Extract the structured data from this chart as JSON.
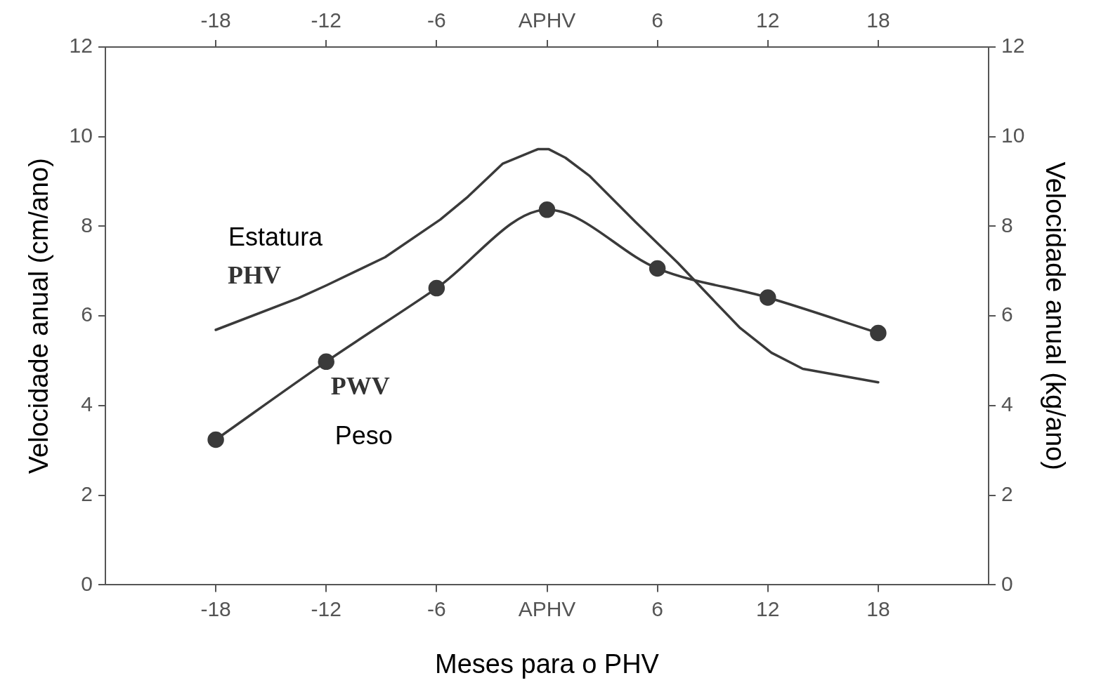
{
  "chart_data": {
    "type": "line",
    "xlabel": "Meses para o PHV",
    "ylabel": "Velocidade anual (cm/ano)",
    "y2label": "Velocidade anual (kg/ano)",
    "xlim": [
      -24,
      24
    ],
    "xticks": [
      -18,
      -12,
      -6,
      {
        "value": 0,
        "label": "APHV"
      },
      6,
      12,
      18
    ],
    "x2lim": [
      -24,
      24
    ],
    "x2ticks": [
      -18,
      -12,
      -6,
      {
        "value": 0,
        "label": "APHV"
      },
      6,
      12,
      18
    ],
    "ylim": [
      0,
      12
    ],
    "yticks": [
      0,
      2,
      4,
      6,
      8,
      10,
      12
    ],
    "y2lim": [
      0,
      12
    ],
    "y2ticks": [
      0,
      2,
      4,
      6,
      8,
      10,
      12
    ],
    "grid": false,
    "legend": false,
    "annotations": [
      "Estatura",
      "Peso"
    ],
    "series": [
      {
        "name": "PHV",
        "color": "#3a3a3a",
        "marker": "none",
        "x": [
          -18,
          -13.5,
          -12,
          -8.8,
          -5.8,
          -4.3,
          -2.4,
          -0.5,
          0.1,
          1,
          2.3,
          4.8,
          7.1,
          9,
          10.5,
          12.2,
          13.9,
          18
        ],
        "values": [
          5.69,
          6.4,
          6.68,
          7.31,
          8.15,
          8.66,
          9.4,
          9.72,
          9.72,
          9.53,
          9.13,
          8.1,
          7.19,
          6.37,
          5.73,
          5.18,
          4.82,
          4.52
        ]
      },
      {
        "name": "PWV",
        "color": "#3a3a3a",
        "marker": "circle",
        "axis": "y2",
        "x": [
          -18,
          -12,
          -6,
          0,
          6,
          12,
          18
        ],
        "values": [
          3.24,
          4.98,
          6.62,
          8.37,
          7.06,
          6.41,
          5.62
        ]
      }
    ]
  }
}
